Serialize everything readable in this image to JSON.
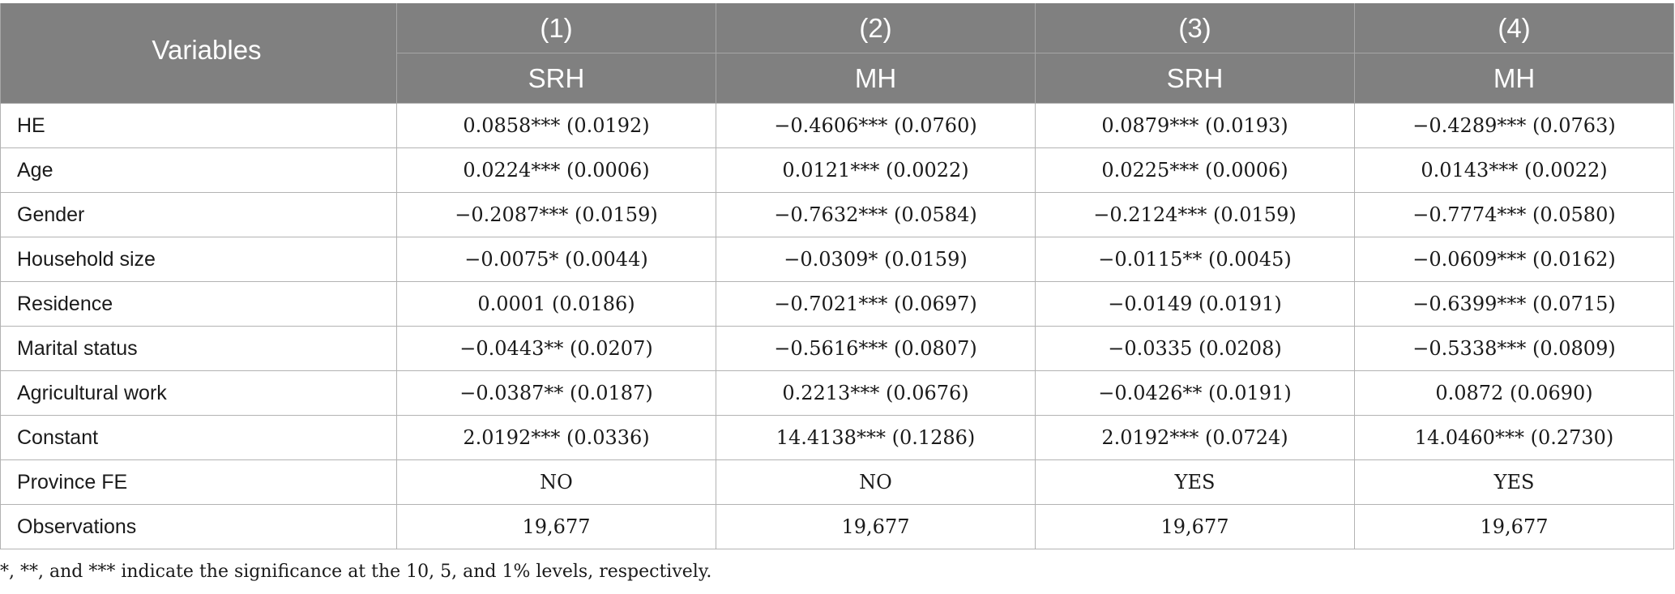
{
  "table": {
    "variables_header": "Variables",
    "columns": [
      {
        "number": "(1)",
        "dependent": "SRH"
      },
      {
        "number": "(2)",
        "dependent": "MH"
      },
      {
        "number": "(3)",
        "dependent": "SRH"
      },
      {
        "number": "(4)",
        "dependent": "MH"
      }
    ],
    "rows": [
      {
        "label": "HE",
        "values": [
          "0.0858*** (0.0192)",
          "−0.4606*** (0.0760)",
          "0.0879*** (0.0193)",
          "−0.4289*** (0.0763)"
        ]
      },
      {
        "label": "Age",
        "values": [
          "0.0224*** (0.0006)",
          "0.0121*** (0.0022)",
          "0.0225*** (0.0006)",
          "0.0143*** (0.0022)"
        ]
      },
      {
        "label": "Gender",
        "values": [
          "−0.2087*** (0.0159)",
          "−0.7632*** (0.0584)",
          "−0.2124*** (0.0159)",
          "−0.7774*** (0.0580)"
        ]
      },
      {
        "label": "Household size",
        "values": [
          "−0.0075* (0.0044)",
          "−0.0309* (0.0159)",
          "−0.0115** (0.0045)",
          "−0.0609*** (0.0162)"
        ]
      },
      {
        "label": "Residence",
        "values": [
          "0.0001 (0.0186)",
          "−0.7021*** (0.0697)",
          "−0.0149 (0.0191)",
          "−0.6399*** (0.0715)"
        ]
      },
      {
        "label": "Marital status",
        "values": [
          "−0.0443** (0.0207)",
          "−0.5616*** (0.0807)",
          "−0.0335 (0.0208)",
          "−0.5338*** (0.0809)"
        ]
      },
      {
        "label": "Agricultural work",
        "values": [
          "−0.0387** (0.0187)",
          "0.2213*** (0.0676)",
          "−0.0426** (0.0191)",
          "0.0872 (0.0690)"
        ]
      },
      {
        "label": "Constant",
        "values": [
          "2.0192*** (0.0336)",
          "14.4138*** (0.1286)",
          "2.0192*** (0.0724)",
          "14.0460*** (0.2730)"
        ]
      },
      {
        "label": "Province FE",
        "values": [
          "NO",
          "NO",
          "YES",
          "YES"
        ]
      },
      {
        "label": "Observations",
        "values": [
          "19,677",
          "19,677",
          "19,677",
          "19,677"
        ]
      }
    ]
  },
  "footnote": "*, **, and *** indicate the significance at the 10, 5, and 1% levels, respectively."
}
